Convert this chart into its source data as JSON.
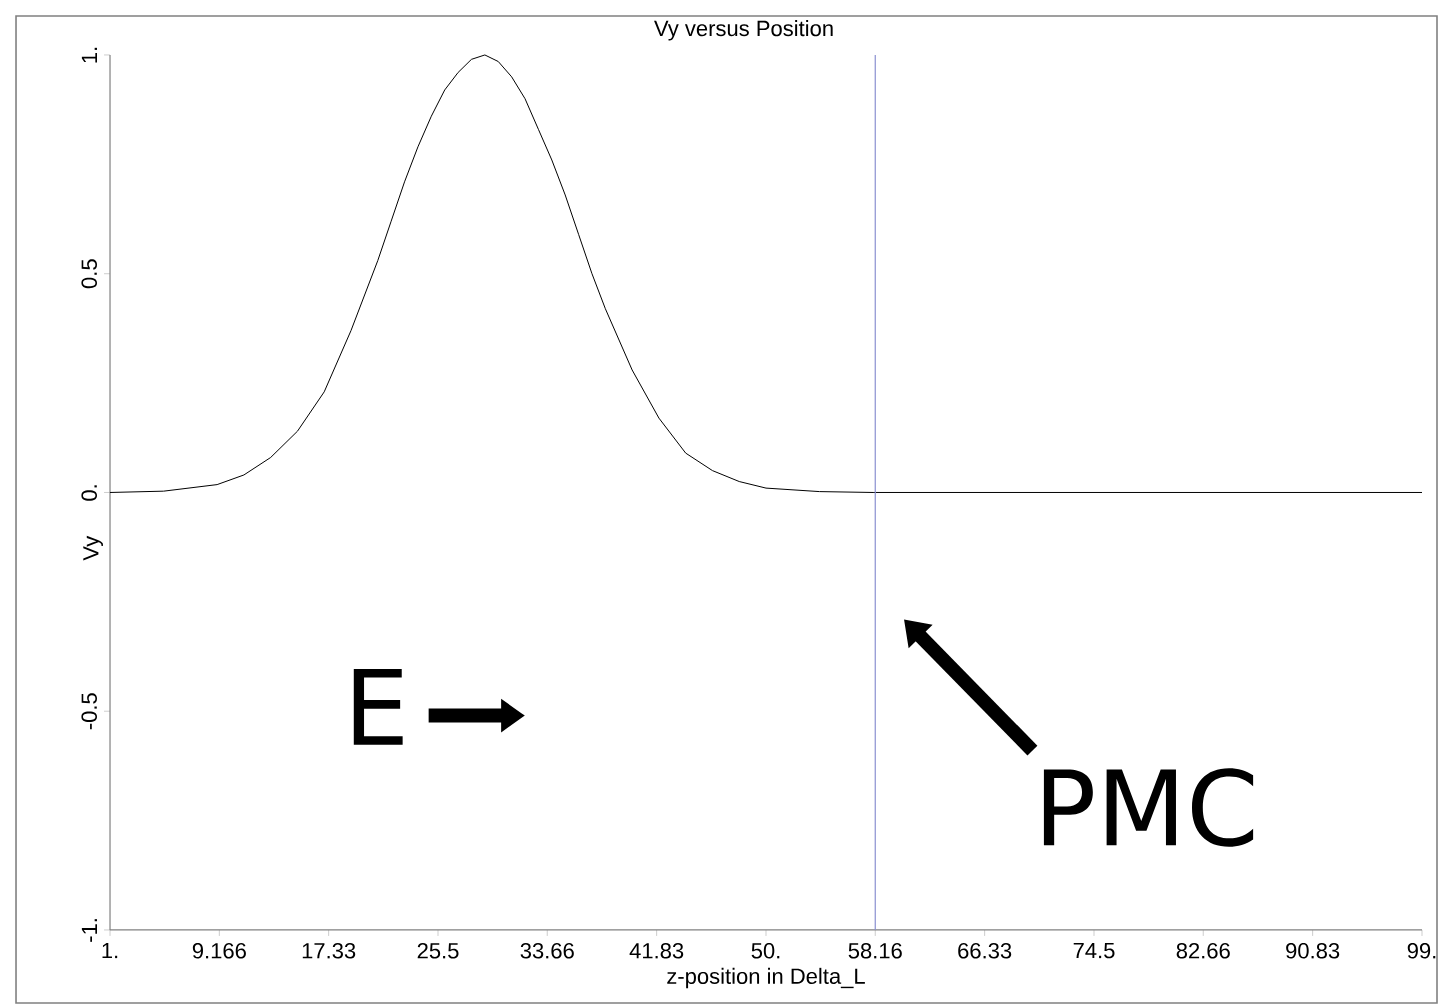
{
  "chart_data": {
    "type": "line",
    "title": "Vy versus Position",
    "xlabel": "z-position in Delta_L",
    "ylabel": "Vy",
    "x": [
      1,
      5,
      9,
      11,
      13,
      15,
      17,
      19,
      20,
      21,
      22,
      23,
      24,
      25,
      26,
      27,
      28,
      29,
      30,
      31,
      32,
      33,
      34,
      35,
      36,
      37,
      38,
      39,
      40,
      42,
      44,
      46,
      48,
      50,
      54,
      58,
      70,
      85,
      99
    ],
    "series": [
      {
        "color": "#000000",
        "values": [
          0,
          0.003,
          0.018,
          0.04,
          0.08,
          0.14,
          0.23,
          0.37,
          0.45,
          0.53,
          0.62,
          0.71,
          0.79,
          0.86,
          0.92,
          0.96,
          0.99,
          1,
          0.985,
          0.95,
          0.9,
          0.83,
          0.76,
          0.68,
          0.59,
          0.5,
          0.42,
          0.35,
          0.28,
          0.17,
          0.09,
          0.05,
          0.025,
          0.01,
          0.002,
          0,
          0,
          0,
          0
        ]
      }
    ],
    "xlim": [
      1,
      99
    ],
    "ylim": [
      -1,
      1
    ],
    "xticks": [
      {
        "value": 1,
        "label": "1."
      },
      9.166,
      17.33,
      25.5,
      33.66,
      41.83,
      {
        "value": 50,
        "label": "50."
      },
      58.16,
      66.33,
      74.5,
      82.66,
      90.83,
      {
        "value": 99,
        "label": "99."
      }
    ],
    "yticks": [
      {
        "value": -1,
        "label": "-1."
      },
      -0.5,
      {
        "value": 0,
        "label": "0."
      },
      0.5,
      {
        "value": 1,
        "label": "1."
      }
    ],
    "ref_lines": [
      {
        "axis": "x",
        "value": 58.16,
        "color": "#8a8fd0"
      }
    ],
    "annotations": [
      "E",
      "PMC"
    ]
  }
}
